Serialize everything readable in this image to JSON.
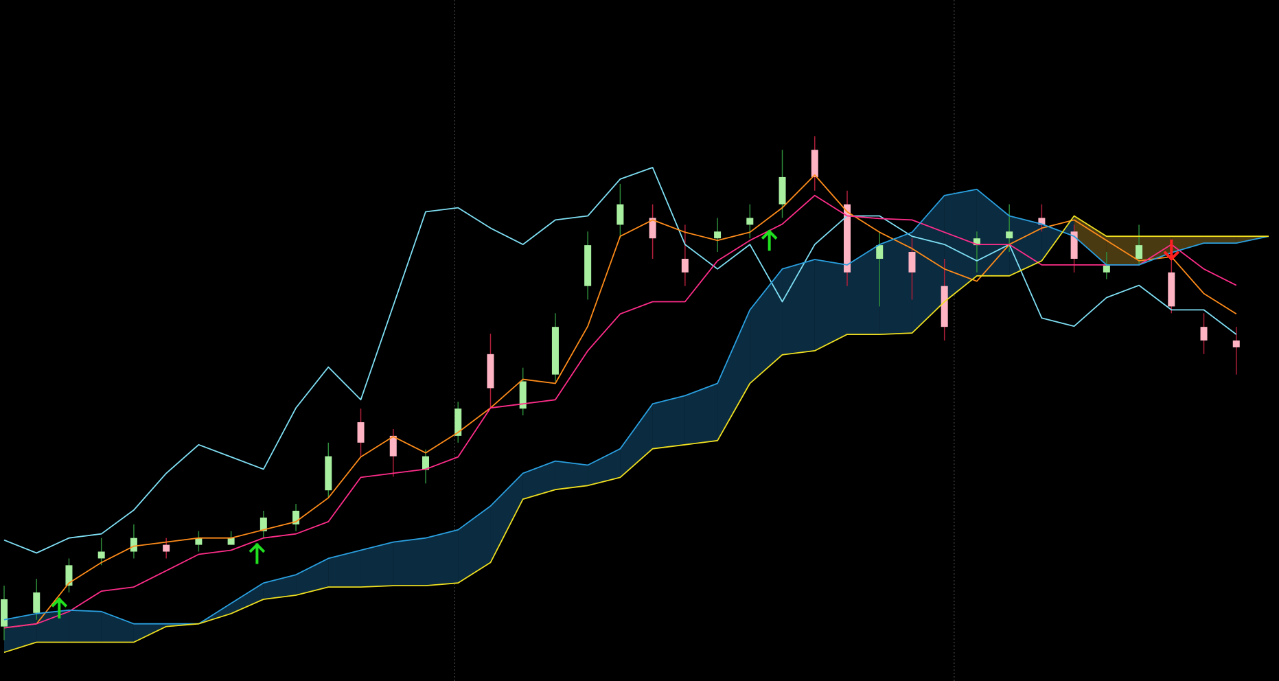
{
  "chart_data": {
    "type": "ichimoku",
    "xlim": [
      0,
      39
    ],
    "ylim": [
      0,
      100
    ],
    "xticks": [
      13.9,
      29.3
    ],
    "grid": true,
    "series": [
      {
        "name": "chikou",
        "color": "#7fe0f5",
        "values": [
          20.7,
          18.8,
          21.0,
          21.6,
          25.1,
          30.5,
          34.7,
          32.9,
          31.1,
          40.1,
          46.1,
          41.3,
          55.1,
          68.9,
          69.5,
          66.5,
          64.1,
          67.7,
          68.3,
          73.7,
          75.4,
          64.1,
          60.5,
          64.1,
          55.7,
          64.1,
          68.3,
          68.3,
          65.3,
          64.1,
          61.7,
          64.1,
          53.3,
          52.1,
          56.3,
          58.1,
          54.5,
          54.5,
          50.9,
          null
        ]
      },
      {
        "name": "tenkan",
        "color": "#ff8c1a",
        "values": [
          7.8,
          8.4,
          14.4,
          17.4,
          19.8,
          20.4,
          21.0,
          21.0,
          22.2,
          23.4,
          26.9,
          32.9,
          35.9,
          33.5,
          36.5,
          40.1,
          44.3,
          43.7,
          52.1,
          65.3,
          67.7,
          65.9,
          64.7,
          65.9,
          69.5,
          74.3,
          68.9,
          65.9,
          63.5,
          60.5,
          58.7,
          64.1,
          66.5,
          67.7,
          64.7,
          61.7,
          62.3,
          56.9,
          53.9,
          null
        ]
      },
      {
        "name": "kijun",
        "color": "#ff2d8a",
        "values": [
          7.8,
          8.4,
          10.2,
          13.2,
          13.8,
          16.2,
          18.6,
          19.2,
          21.0,
          21.6,
          23.4,
          29.9,
          30.5,
          31.1,
          32.9,
          40.1,
          40.7,
          41.3,
          48.5,
          53.9,
          55.7,
          55.7,
          61.7,
          64.7,
          67.1,
          71.3,
          68.3,
          67.9,
          67.7,
          65.9,
          64.1,
          64.1,
          61.1,
          61.1,
          61.1,
          61.1,
          64.1,
          60.5,
          58.1,
          null
        ]
      },
      {
        "name": "span-a",
        "color": "#2aa0e0",
        "values": [
          9.0,
          9.9,
          10.4,
          10.2,
          8.4,
          8.4,
          8.4,
          11.4,
          14.4,
          15.6,
          18.0,
          19.2,
          20.4,
          21.0,
          22.2,
          25.7,
          30.5,
          32.3,
          31.7,
          34.1,
          40.7,
          41.9,
          43.7,
          54.5,
          60.5,
          61.9,
          61.1,
          64.1,
          65.9,
          71.3,
          72.2,
          68.3,
          67.1,
          65.3,
          61.1,
          61.1,
          62.9,
          64.3,
          64.3,
          65.3
        ]
      },
      {
        "name": "span-b",
        "color": "#f0e020",
        "values": [
          4.2,
          5.7,
          5.7,
          5.7,
          5.7,
          8.0,
          8.4,
          9.9,
          12.0,
          12.6,
          13.8,
          13.8,
          14.0,
          14.0,
          14.4,
          17.4,
          26.7,
          28.1,
          28.7,
          29.9,
          34.1,
          34.7,
          35.3,
          43.7,
          47.9,
          48.5,
          50.9,
          50.9,
          51.1,
          55.7,
          59.5,
          59.5,
          61.7,
          68.3,
          65.3,
          65.3,
          65.3,
          65.3,
          65.3,
          65.3
        ]
      }
    ],
    "cloud_colors": {
      "bull": "#0b2b40",
      "bear": "#4a3a12"
    },
    "candles": {
      "up_color": "#a8f0a0",
      "down_color": "#ffb4c4",
      "wick_up": "#2e8b3a",
      "wick_down": "#b0203a",
      "open": [
        8,
        10,
        14,
        18,
        19,
        20,
        20,
        20,
        22,
        23,
        28,
        38,
        36,
        31,
        36,
        48,
        40,
        45,
        58,
        67,
        68,
        62,
        65,
        67,
        70,
        78,
        70,
        62,
        63,
        58,
        64,
        65,
        68,
        66,
        60,
        62,
        60,
        52,
        50
      ],
      "close": [
        12,
        13,
        17,
        19,
        21,
        19,
        21,
        21,
        24,
        25,
        33,
        35,
        33,
        33,
        40,
        43,
        44,
        52,
        64,
        70,
        65,
        60,
        66,
        68,
        74,
        74,
        60,
        64,
        60,
        52,
        65,
        66,
        67,
        62,
        61,
        64,
        55,
        50,
        49
      ],
      "high": [
        14,
        15,
        18,
        21,
        23,
        21,
        22,
        22,
        25,
        26,
        35,
        40,
        37,
        34,
        41,
        51,
        46,
        54,
        66,
        73,
        70,
        67,
        68,
        70,
        78,
        80,
        72,
        66,
        65,
        62,
        66,
        70,
        70,
        67,
        63,
        67,
        62,
        54,
        52
      ],
      "low": [
        6,
        9,
        13,
        17,
        18,
        18,
        19,
        20,
        21,
        22,
        27,
        33,
        30,
        29,
        35,
        40,
        39,
        44,
        56,
        65,
        62,
        58,
        63,
        65,
        68,
        72,
        58,
        55,
        56,
        50,
        60,
        63,
        66,
        60,
        59,
        61,
        54,
        48,
        45
      ]
    },
    "buy_signals": [
      1.7,
      7.8,
      23.6
    ],
    "buy_levels": [
      11,
      19,
      65
    ],
    "sell_signals": [
      36
    ],
    "sell_levels": [
      63
    ],
    "buy_color": "#20e020",
    "sell_color": "#ff2020"
  }
}
